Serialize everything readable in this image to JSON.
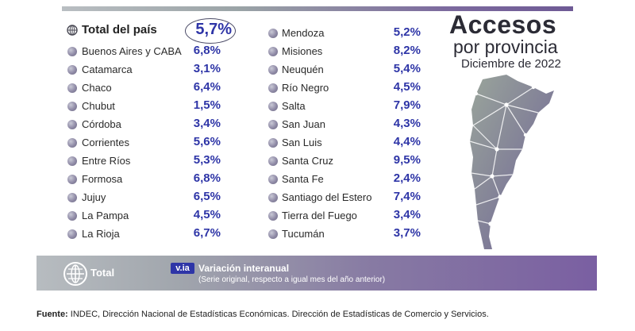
{
  "header": {
    "title_line1": "Accesos",
    "title_line2": "por provincia",
    "subtitle": "Diciembre de 2022"
  },
  "chart_data": {
    "type": "table",
    "title": "Accesos por provincia",
    "subtitle": "Diciembre de 2022",
    "total": {
      "label": "Total del país",
      "value": "5,7%"
    },
    "column_left": [
      {
        "name": "Buenos Aires y CABA",
        "value": "6,8%"
      },
      {
        "name": "Catamarca",
        "value": "3,1%"
      },
      {
        "name": "Chaco",
        "value": "6,4%"
      },
      {
        "name": "Chubut",
        "value": "1,5%"
      },
      {
        "name": "Córdoba",
        "value": "3,4%"
      },
      {
        "name": "Corrientes",
        "value": "5,6%"
      },
      {
        "name": "Entre Ríos",
        "value": "5,3%"
      },
      {
        "name": "Formosa",
        "value": "6,8%"
      },
      {
        "name": "Jujuy",
        "value": "6,5%"
      },
      {
        "name": "La Pampa",
        "value": "4,5%"
      },
      {
        "name": "La Rioja",
        "value": "6,7%"
      }
    ],
    "column_right": [
      {
        "name": "Mendoza",
        "value": "5,2%"
      },
      {
        "name": "Misiones",
        "value": "8,2%"
      },
      {
        "name": "Neuquén",
        "value": "5,4%"
      },
      {
        "name": "Río Negro",
        "value": "4,5%"
      },
      {
        "name": "Salta",
        "value": "7,9%"
      },
      {
        "name": "San Juan",
        "value": "4,3%"
      },
      {
        "name": "San Luis",
        "value": "4,4%"
      },
      {
        "name": "Santa Cruz",
        "value": "9,5%"
      },
      {
        "name": "Santa Fe",
        "value": "2,4%"
      },
      {
        "name": "Santiago del Estero",
        "value": "7,4%"
      },
      {
        "name": "Tierra del Fuego",
        "value": "3,4%"
      },
      {
        "name": "Tucumán",
        "value": "3,7%"
      }
    ]
  },
  "footer": {
    "total_label": "Total",
    "via_badge": "v.ia",
    "via_title": "Variación interanual",
    "via_sub": "(Serie original, respecto a igual mes del año anterior)"
  },
  "source": {
    "label": "Fuente:",
    "text": " INDEC, Dirección Nacional de Estadísticas Económicas. Dirección de Estadísticas de Comercio y Servicios."
  },
  "colors": {
    "value": "#2e35a7",
    "accent": "#7a5fa2"
  }
}
